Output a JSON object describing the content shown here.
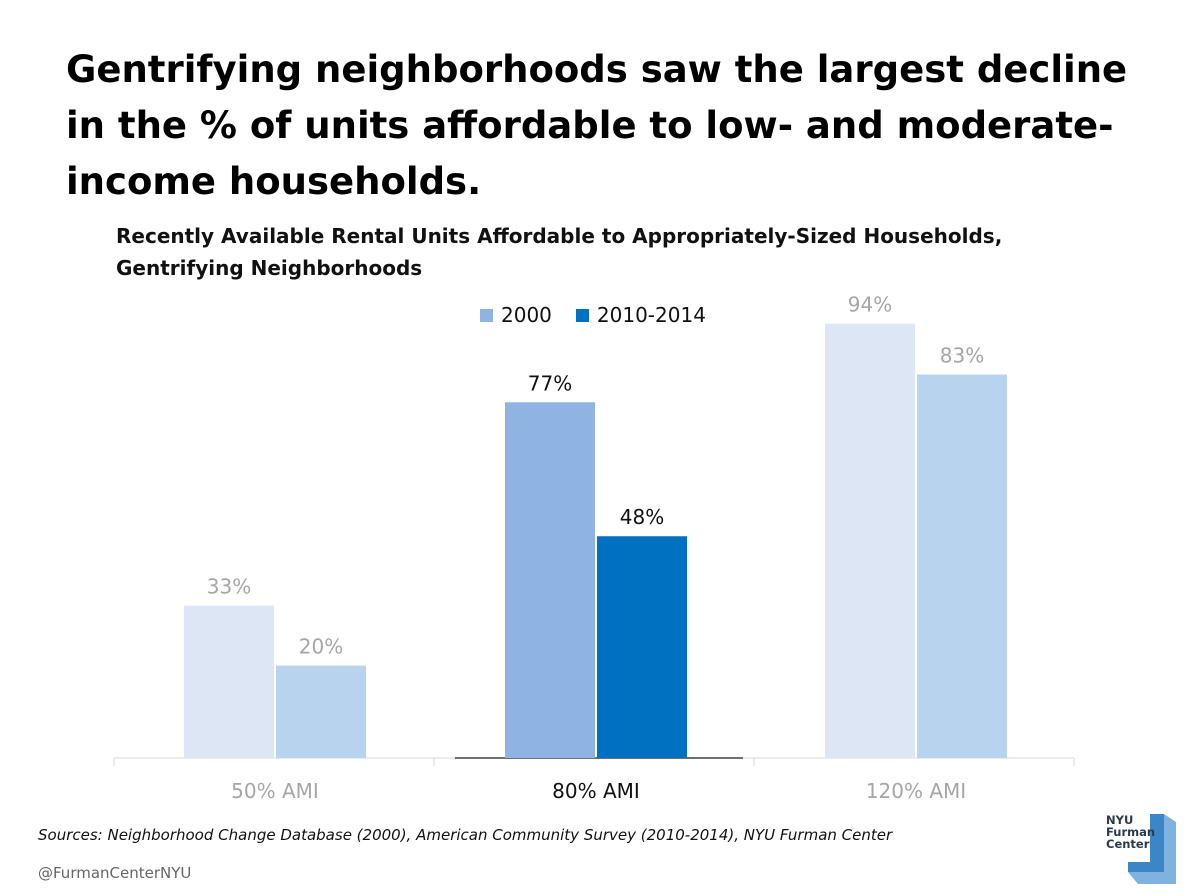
{
  "headline": "Gentrifying neighborhoods saw the largest decline in the % of units affordable to low- and moderate- income households.",
  "colors": {
    "series_2000": "#8fb4e3",
    "series_2010": "#0070c0",
    "faded_2000": "#dce6f4",
    "faded_2010": "#b7d3ed",
    "faded_text": "#a6a6a6",
    "strong_text": "#111111"
  },
  "chart_data": {
    "type": "bar",
    "title": "Recently Available Rental Units Affordable to Appropriately-Sized Households, Gentrifying Neighborhoods",
    "title_lines": [
      "Recently Available Rental Units Affordable to Appropriately-Sized Households,",
      "Gentrifying Neighborhoods"
    ],
    "categories": [
      "50% AMI",
      "80% AMI",
      "120% AMI"
    ],
    "highlighted_category": "80% AMI",
    "series": [
      {
        "name": "2000",
        "values": [
          33,
          77,
          94
        ],
        "labels": [
          "33%",
          "77%",
          "94%"
        ]
      },
      {
        "name": "2010-2014",
        "values": [
          20,
          48,
          83
        ],
        "labels": [
          "20%",
          "48%",
          "83%"
        ]
      }
    ],
    "xlabel": "",
    "ylabel": "",
    "ylim": [
      0,
      100
    ],
    "grid": false,
    "legend": "top-center"
  },
  "footer": {
    "sources": "Sources: Neighborhood Change Database (2000), American Community Survey (2010-2014), NYU Furman Center",
    "handle": "@FurmanCenterNYU"
  },
  "logo": {
    "line1": "NYU",
    "line2": "Furman",
    "line3": "Center"
  }
}
